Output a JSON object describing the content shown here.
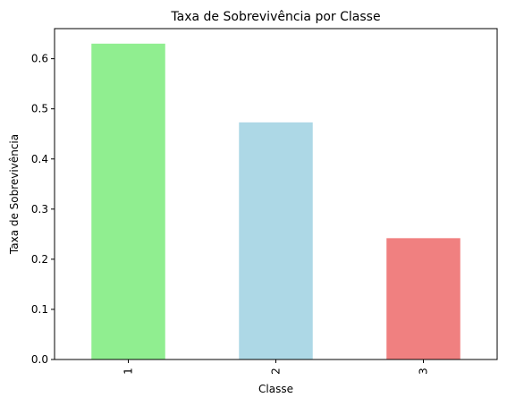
{
  "chart_data": {
    "type": "bar",
    "title": "Taxa de Sobrevivência por Classe",
    "xlabel": "Classe",
    "ylabel": "Taxa de Sobrevivência",
    "categories": [
      "1",
      "2",
      "3"
    ],
    "values": [
      0.63,
      0.473,
      0.242
    ],
    "colors": [
      "#90ee90",
      "#add8e6",
      "#f08080"
    ],
    "ylim": [
      0,
      0.66
    ],
    "yticks": [
      0.0,
      0.1,
      0.2,
      0.3,
      0.4,
      0.5,
      0.6
    ],
    "ytick_labels": [
      "0.0",
      "0.1",
      "0.2",
      "0.3",
      "0.4",
      "0.5",
      "0.6"
    ],
    "grid": false,
    "legend": "none"
  }
}
